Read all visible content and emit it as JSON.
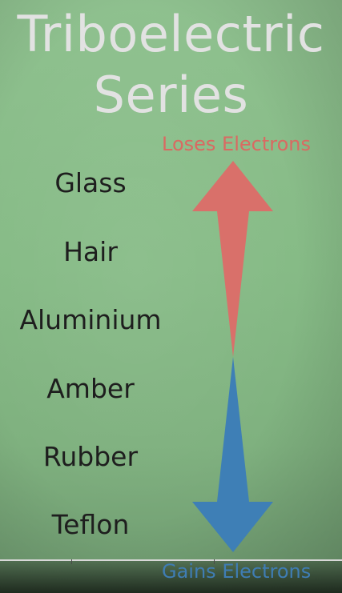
{
  "title": {
    "line1": "Triboelectric",
    "line2": "Series"
  },
  "top_label": "Loses Electrons",
  "bottom_label": "Gains Electrons",
  "materials": [
    "Glass",
    "Hair",
    "Aluminium",
    "Amber",
    "Rubber",
    "Teflon"
  ],
  "colors": {
    "background": "#86bb86",
    "title": "#e2e2e2",
    "loses_arrow": "#d9706a",
    "gains_arrow": "#3e7fb6",
    "material_text": "#1e1e1e"
  }
}
